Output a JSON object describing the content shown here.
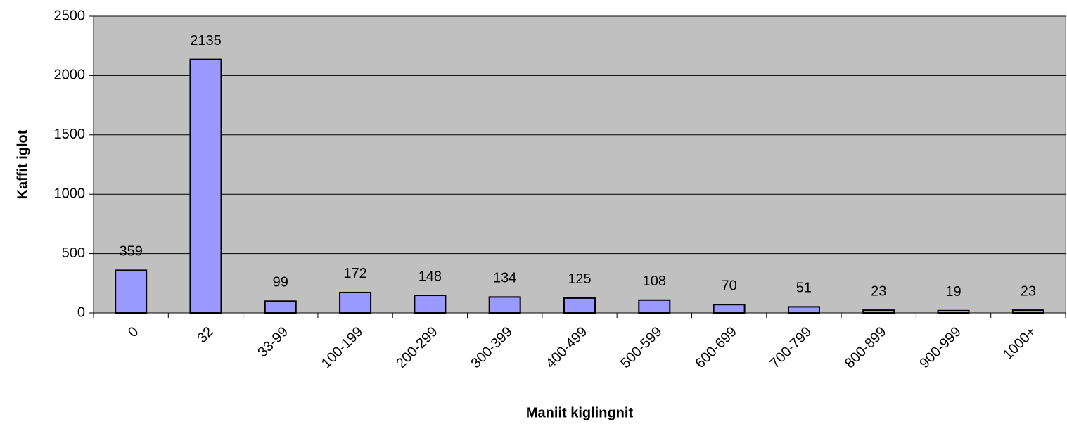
{
  "chart_data": {
    "type": "bar",
    "x_label": "Maniit kiglingnit",
    "y_label": "Kaffit iglot",
    "categories": [
      "0",
      "32",
      "33-99",
      "100-199",
      "200-299",
      "300-399",
      "400-499",
      "500-599",
      "600-699",
      "700-799",
      "800-899",
      "900-999",
      "1000+"
    ],
    "values": [
      359,
      2135,
      99,
      172,
      148,
      134,
      125,
      108,
      70,
      51,
      23,
      19,
      23
    ],
    "color": "#9999ff",
    "plot_background": "#c0c0c0",
    "ylim": [
      0,
      2500
    ],
    "yticks": [
      0,
      500,
      1000,
      1500,
      2000,
      2500
    ],
    "grid": true
  }
}
